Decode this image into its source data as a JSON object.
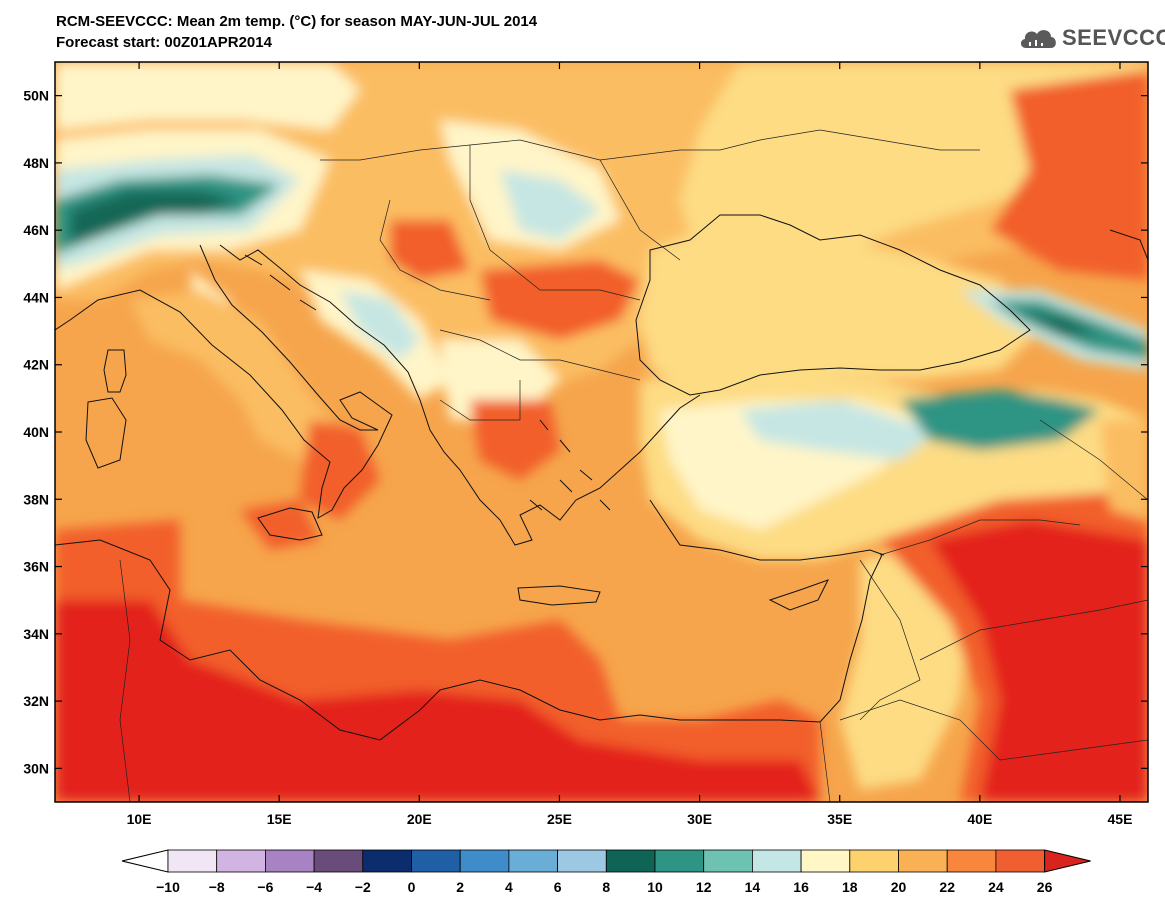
{
  "title": "RCM-SEEVCCC: Mean 2m temp. (°C) for season MAY-JUN-JUL 2014",
  "subtitle": "Forecast start: 00Z01APR2014",
  "logo": {
    "text": "SEEVCCC",
    "icon": "cloud-logo-icon"
  },
  "map": {
    "region": "Eastern Mediterranean / Black Sea",
    "lon_range": [
      7,
      46
    ],
    "lat_range": [
      29,
      51
    ],
    "lat_labels": [
      "50N",
      "48N",
      "46N",
      "44N",
      "42N",
      "40N",
      "38N",
      "36N",
      "34N",
      "32N",
      "30N"
    ],
    "lat_values": [
      50,
      48,
      46,
      44,
      42,
      40,
      38,
      36,
      34,
      32,
      30
    ],
    "lon_labels": [
      "10E",
      "15E",
      "20E",
      "25E",
      "30E",
      "35E",
      "40E",
      "45E"
    ],
    "lon_values": [
      10,
      15,
      20,
      25,
      30,
      35,
      40,
      45
    ]
  },
  "colorbar": {
    "labels": [
      "−10",
      "−8",
      "−6",
      "−4",
      "−2",
      "0",
      "2",
      "4",
      "6",
      "8",
      "10",
      "12",
      "14",
      "16",
      "18",
      "20",
      "22",
      "24",
      "26"
    ],
    "colors": [
      "#f1e6f6",
      "#d2b4e2",
      "#a883c4",
      "#6a4c7a",
      "#0b2d6e",
      "#1f5fa6",
      "#3f8ccb",
      "#6aaed8",
      "#9cc8e4",
      "#0f6455",
      "#2f9484",
      "#6ec2b2",
      "#c4e6e4",
      "#fff8c6",
      "#fdd16e",
      "#fab054",
      "#f8873d",
      "#f05f32"
    ],
    "under_color": "#ffffff",
    "over_color": "#d9241e"
  },
  "fill_colors": {
    "ocean": "#f6a54c",
    "north_africa": "#e3231c",
    "hot_zone": "#f25f2c",
    "land_warm": "#fbbd62",
    "land_mild": "#fddc84",
    "cool": "#fff5c8",
    "cold": "#c6e6e3",
    "alpine": "#2f9484",
    "peak": "#156857"
  }
}
